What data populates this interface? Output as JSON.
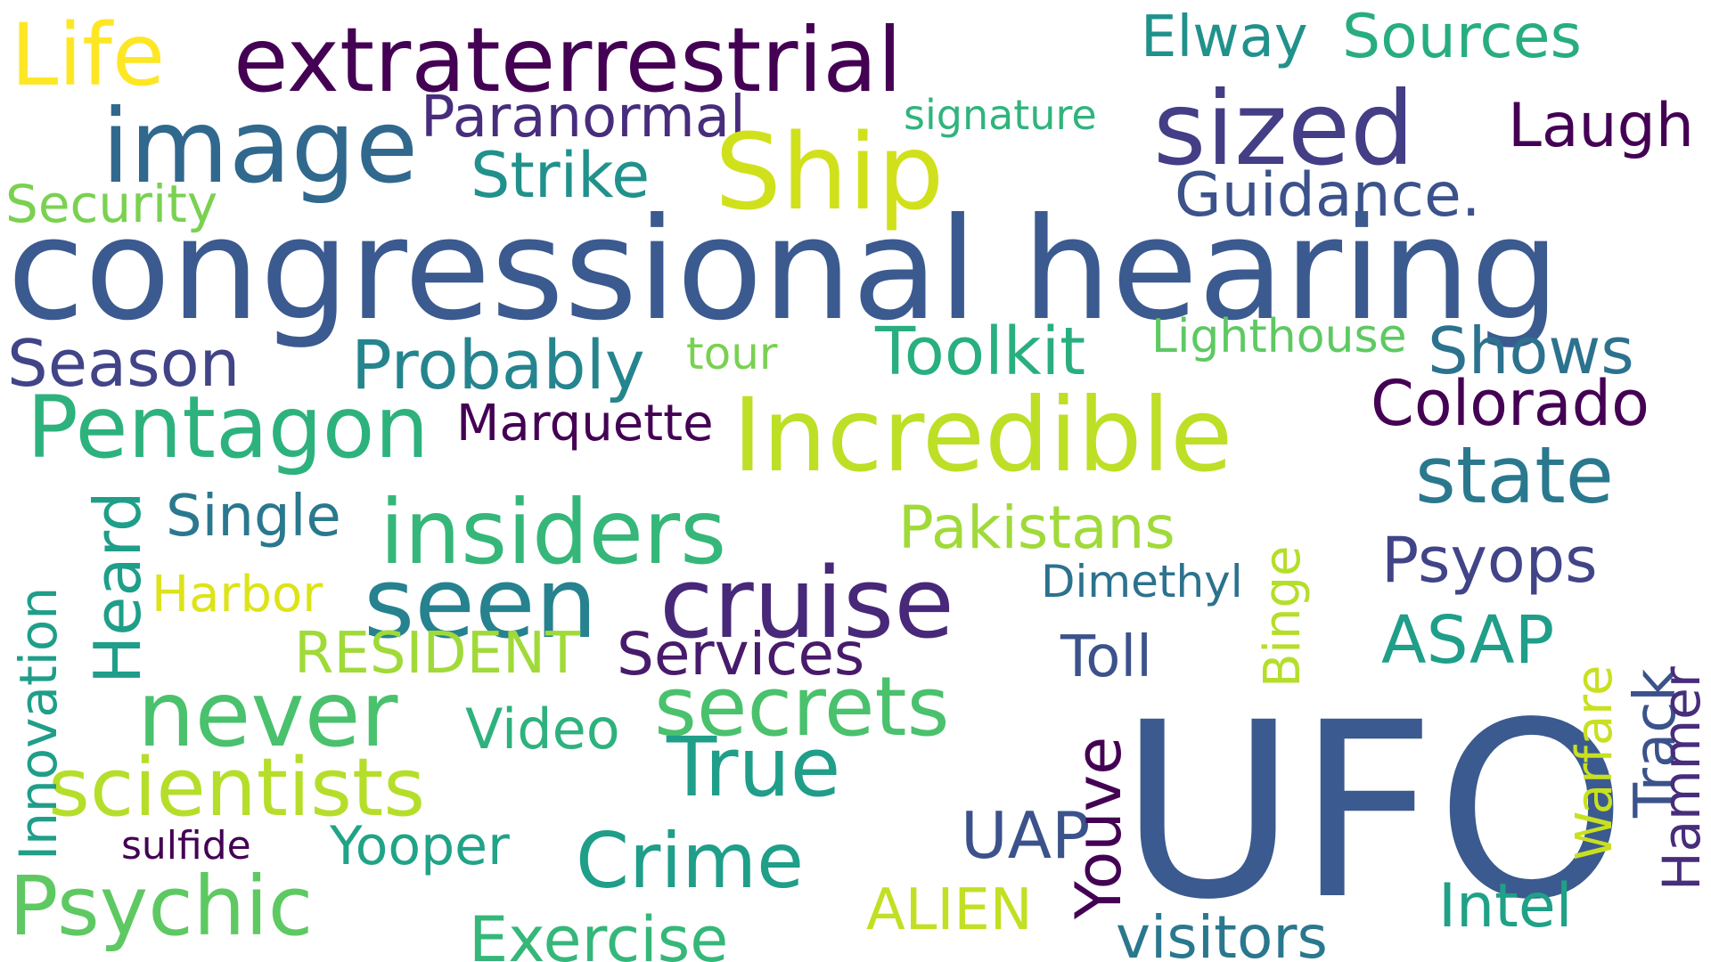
{
  "words": [
    {
      "id": 1,
      "text": "Life",
      "color": "#fde725"
    },
    {
      "id": 2,
      "text": "extraterrestrial",
      "color": "#440154"
    },
    {
      "id": 3,
      "text": "Elway",
      "color": "#21918c"
    },
    {
      "id": 4,
      "text": "Sources",
      "color": "#27ad81"
    },
    {
      "id": 5,
      "text": "image",
      "color": "#31688e"
    },
    {
      "id": 6,
      "text": "Paranormal",
      "color": "#472d7b"
    },
    {
      "id": 7,
      "text": "signature",
      "color": "#2fb47c"
    },
    {
      "id": 8,
      "text": "Ship",
      "color": "#d0e11c"
    },
    {
      "id": 9,
      "text": "sized",
      "color": "#433e85"
    },
    {
      "id": 10,
      "text": "Laugh",
      "color": "#440154"
    },
    {
      "id": 11,
      "text": "Strike",
      "color": "#21918c"
    },
    {
      "id": 12,
      "text": "Security",
      "color": "#7ad151"
    },
    {
      "id": 13,
      "text": "Guidance.",
      "color": "#3b528b"
    },
    {
      "id": 14,
      "text": "congressional hearing",
      "color": "#3b5a8f"
    },
    {
      "id": 15,
      "text": "Season",
      "color": "#414487"
    },
    {
      "id": 16,
      "text": "Probably",
      "color": "#25858e"
    },
    {
      "id": 17,
      "text": "tour",
      "color": "#7ad151"
    },
    {
      "id": 18,
      "text": "Toolkit",
      "color": "#29af7f"
    },
    {
      "id": 19,
      "text": "Lighthouse",
      "color": "#5ec962"
    },
    {
      "id": 20,
      "text": "Shows",
      "color": "#2c728e"
    },
    {
      "id": 21,
      "text": "Pentagon",
      "color": "#2db27d"
    },
    {
      "id": 22,
      "text": "Marquette",
      "color": "#440154"
    },
    {
      "id": 23,
      "text": "Incredible",
      "color": "#bddf26"
    },
    {
      "id": 24,
      "text": "Colorado",
      "color": "#440154"
    },
    {
      "id": 25,
      "text": "state",
      "color": "#2a788e"
    },
    {
      "id": 26,
      "text": "Single",
      "color": "#2a788e"
    },
    {
      "id": 27,
      "text": "insiders",
      "color": "#35b779"
    },
    {
      "id": 28,
      "text": "Pakistans",
      "color": "#a0da39"
    },
    {
      "id": 29,
      "text": "Psyops",
      "color": "#414487"
    },
    {
      "id": 30,
      "text": "seen",
      "color": "#26828e"
    },
    {
      "id": 31,
      "text": "cruise",
      "color": "#482878"
    },
    {
      "id": 32,
      "text": "Dimethyl",
      "color": "#2c728e"
    },
    {
      "id": 33,
      "text": "Harbor",
      "color": "#dde318"
    },
    {
      "id": 34,
      "text": "RESIDENT",
      "color": "#a0da39"
    },
    {
      "id": 35,
      "text": "Services",
      "color": "#481a6c"
    },
    {
      "id": 36,
      "text": "Toll",
      "color": "#3b528b"
    },
    {
      "id": 37,
      "text": "ASAP",
      "color": "#1f9e89"
    },
    {
      "id": 38,
      "text": "never",
      "color": "#4ac16d"
    },
    {
      "id": 39,
      "text": "Video",
      "color": "#2db27d"
    },
    {
      "id": 40,
      "text": "secrets",
      "color": "#4ac16d"
    },
    {
      "id": 41,
      "text": "True",
      "color": "#1f9e89"
    },
    {
      "id": 42,
      "text": "scientists",
      "color": "#b5de2b"
    },
    {
      "id": 43,
      "text": "UFO",
      "color": "#3b5a8f"
    },
    {
      "id": 44,
      "text": "UAP",
      "color": "#3b528b"
    },
    {
      "id": 45,
      "text": "sulfide",
      "color": "#440154"
    },
    {
      "id": 46,
      "text": "Yooper",
      "color": "#20a386"
    },
    {
      "id": 47,
      "text": "Crime",
      "color": "#1f9e89"
    },
    {
      "id": 48,
      "text": "Psychic",
      "color": "#5ec962"
    },
    {
      "id": 49,
      "text": "ALIEN",
      "color": "#c2df23"
    },
    {
      "id": 50,
      "text": "Intel",
      "color": "#1fa187"
    },
    {
      "id": 51,
      "text": "Exercise",
      "color": "#35b779"
    },
    {
      "id": 52,
      "text": "visitors",
      "color": "#2a788e"
    },
    {
      "id": 53,
      "text": "Innovation",
      "color": "#1f9e89"
    },
    {
      "id": 54,
      "text": "Heard",
      "color": "#1f9e89"
    },
    {
      "id": 55,
      "text": "Binge",
      "color": "#b5de2b"
    },
    {
      "id": 56,
      "text": "Youve",
      "color": "#440154"
    },
    {
      "id": 57,
      "text": "Warfare",
      "color": "#c8e020"
    },
    {
      "id": 58,
      "text": "Track",
      "color": "#3b528b"
    },
    {
      "id": 59,
      "text": "Hammer",
      "color": "#472d7b"
    }
  ]
}
